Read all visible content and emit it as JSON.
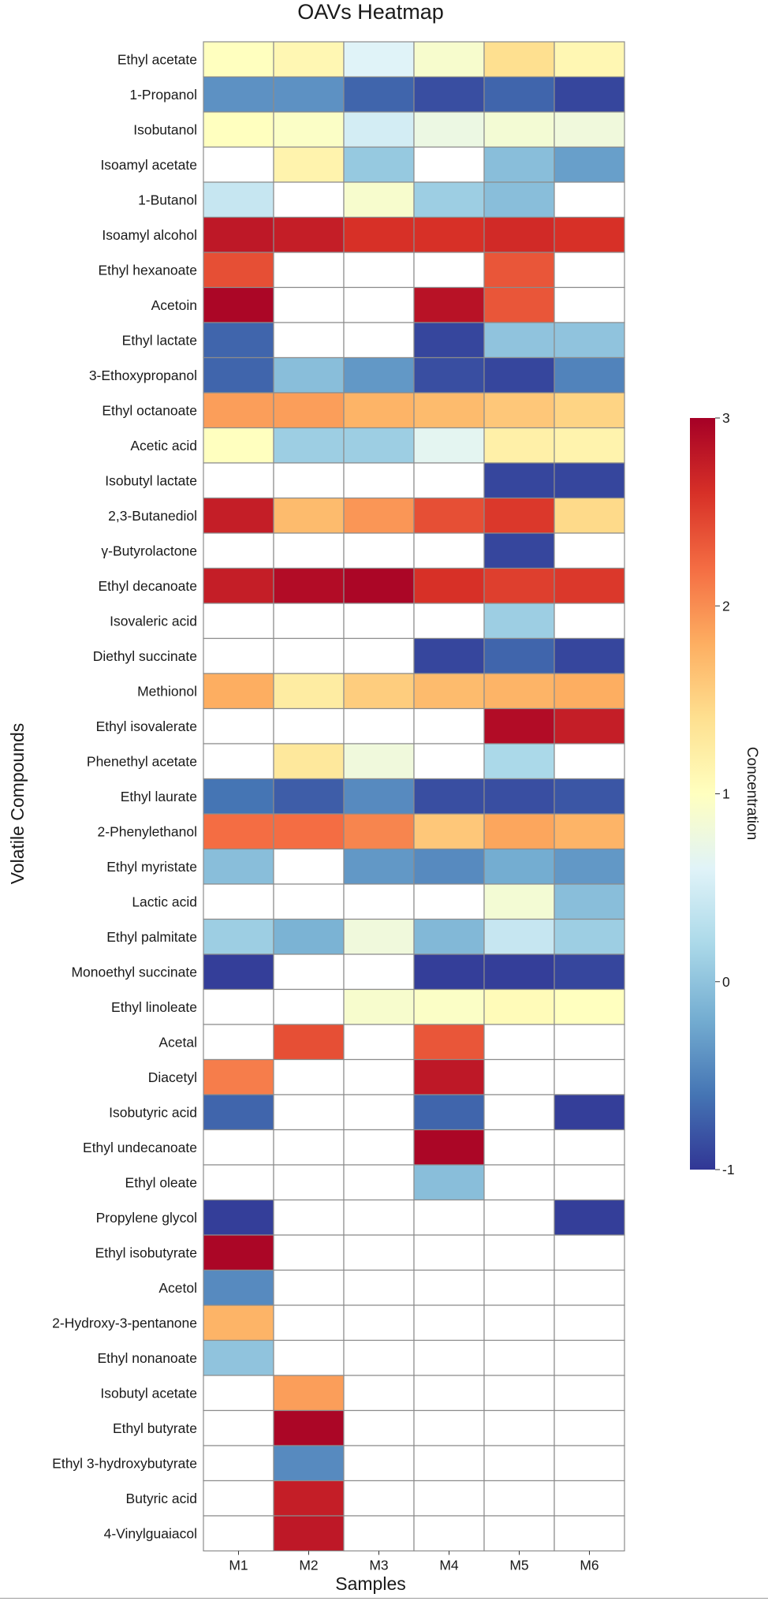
{
  "chart_data": {
    "type": "heatmap",
    "title": "OAVs Heatmap",
    "xlabel": "Samples",
    "ylabel": "Volatile Compounds",
    "colorbar_label": "Concentration",
    "colorbar_range": [
      -1,
      3
    ],
    "colorbar_ticks": [
      -1,
      0,
      1,
      2,
      3
    ],
    "colormap": "RdYlBu_r",
    "missing_color": "#ffffff",
    "samples": [
      "M1",
      "M2",
      "M3",
      "M4",
      "M5",
      "M6"
    ],
    "compounds": [
      "Ethyl acetate",
      "1-Propanol",
      "Isobutanol",
      "Isoamyl acetate",
      "1-Butanol",
      "Isoamyl alcohol",
      "Ethyl hexanoate",
      "Acetoin",
      "Ethyl lactate",
      "3-Ethoxypropanol",
      "Ethyl octanoate",
      "Acetic acid",
      "Isobutyl lactate",
      "2,3-Butanediol",
      "γ-Butyrolactone",
      "Ethyl decanoate",
      "Isovaleric acid",
      "Diethyl succinate",
      "Methionol",
      "Ethyl isovalerate",
      "Phenethyl acetate",
      "Ethyl laurate",
      "2-Phenylethanol",
      "Ethyl myristate",
      "Lactic acid",
      "Ethyl palmitate",
      "Monoethyl succinate",
      "Ethyl linoleate",
      "Acetal",
      "Diacetyl",
      "Isobutyric acid",
      "Ethyl undecanoate",
      "Ethyl oleate",
      "Propylene glycol",
      "Ethyl isobutyrate",
      "Acetol",
      "2-Hydroxy-3-pentanone",
      "Ethyl nonanoate",
      "Isobutyl acetate",
      "Ethyl butyrate",
      "Ethyl 3-hydroxybutyrate",
      "Butyric acid",
      "4-Vinylguaiacol"
    ],
    "values": [
      [
        1.0,
        1.1,
        0.6,
        0.9,
        1.4,
        1.1
      ],
      [
        -0.4,
        -0.4,
        -0.7,
        -0.85,
        -0.7,
        -0.9
      ],
      [
        1.0,
        0.95,
        0.5,
        0.75,
        0.85,
        0.8
      ],
      [
        null,
        1.15,
        0.05,
        null,
        -0.05,
        -0.3
      ],
      [
        0.4,
        null,
        0.9,
        0.1,
        -0.05,
        null
      ],
      [
        2.8,
        2.75,
        2.6,
        2.6,
        2.65,
        2.6
      ],
      [
        2.4,
        null,
        null,
        null,
        2.35,
        null
      ],
      [
        2.95,
        null,
        null,
        2.85,
        2.35,
        null
      ],
      [
        -0.7,
        null,
        null,
        -0.9,
        0.0,
        0.0
      ],
      [
        -0.7,
        -0.05,
        -0.35,
        -0.85,
        -0.9,
        -0.5
      ],
      [
        1.9,
        1.9,
        1.75,
        1.7,
        1.6,
        1.5
      ],
      [
        1.0,
        0.1,
        0.1,
        0.65,
        1.2,
        1.15
      ],
      [
        null,
        null,
        null,
        null,
        -0.9,
        -0.9
      ],
      [
        2.75,
        1.7,
        1.95,
        2.4,
        2.55,
        1.45
      ],
      [
        null,
        null,
        null,
        null,
        -0.9,
        null
      ],
      [
        2.75,
        2.9,
        2.95,
        2.6,
        2.5,
        2.55
      ],
      [
        null,
        null,
        null,
        null,
        0.1,
        null
      ],
      [
        null,
        null,
        null,
        -0.9,
        -0.7,
        -0.9
      ],
      [
        1.8,
        1.25,
        1.55,
        1.7,
        1.75,
        1.8
      ],
      [
        null,
        null,
        null,
        null,
        2.9,
        2.75
      ],
      [
        null,
        1.3,
        0.8,
        null,
        0.2,
        null
      ],
      [
        -0.6,
        -0.75,
        -0.45,
        -0.85,
        -0.85,
        -0.8
      ],
      [
        2.2,
        2.2,
        2.05,
        1.6,
        1.85,
        1.75
      ],
      [
        -0.05,
        null,
        -0.35,
        -0.45,
        -0.2,
        -0.35
      ],
      [
        null,
        null,
        null,
        null,
        0.85,
        -0.05
      ],
      [
        0.1,
        -0.15,
        0.8,
        -0.1,
        0.4,
        0.1
      ],
      [
        -0.95,
        null,
        null,
        -0.95,
        -0.95,
        -0.9
      ],
      [
        null,
        null,
        0.9,
        0.95,
        1.05,
        1.0
      ],
      [
        null,
        2.4,
        null,
        2.35,
        null,
        null
      ],
      [
        2.1,
        null,
        null,
        2.8,
        null,
        null
      ],
      [
        -0.7,
        null,
        null,
        -0.7,
        null,
        -0.95
      ],
      [
        null,
        null,
        null,
        2.95,
        null,
        null
      ],
      [
        null,
        null,
        null,
        -0.05,
        null,
        null
      ],
      [
        -0.95,
        null,
        null,
        null,
        null,
        -0.95
      ],
      [
        2.95,
        null,
        null,
        null,
        null,
        null
      ],
      [
        -0.45,
        null,
        null,
        null,
        null,
        null
      ],
      [
        1.75,
        null,
        null,
        null,
        null,
        null
      ],
      [
        0.0,
        null,
        null,
        null,
        null,
        null
      ],
      [
        null,
        1.9,
        null,
        null,
        null,
        null
      ],
      [
        null,
        2.95,
        null,
        null,
        null,
        null
      ],
      [
        null,
        -0.45,
        null,
        null,
        null,
        null
      ],
      [
        null,
        2.75,
        null,
        null,
        null,
        null
      ],
      [
        null,
        2.8,
        null,
        null,
        null,
        null
      ]
    ]
  }
}
